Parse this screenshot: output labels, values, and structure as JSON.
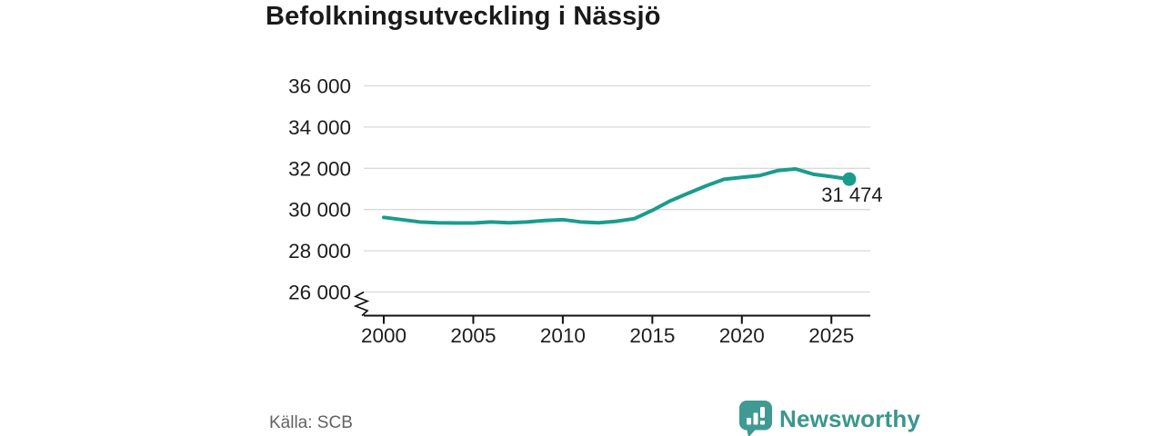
{
  "title": "Befolkningsutveckling i Nässjö",
  "source": "Källa: SCB",
  "branding": {
    "name": "Newsworthy",
    "logo_icon": "speech-bubble-bar-chart-icon",
    "logo_color": "#3f9a93"
  },
  "chart_data": {
    "type": "line",
    "title": "Befolkningsutveckling i Nässjö",
    "xlabel": "",
    "ylabel": "",
    "x": [
      2000,
      2001,
      2002,
      2003,
      2004,
      2005,
      2006,
      2007,
      2008,
      2009,
      2010,
      2011,
      2012,
      2013,
      2014,
      2015,
      2016,
      2017,
      2018,
      2019,
      2020,
      2021,
      2022,
      2023,
      2024,
      2025,
      2026
    ],
    "values": [
      29620,
      29510,
      29400,
      29360,
      29350,
      29350,
      29400,
      29360,
      29400,
      29470,
      29510,
      29400,
      29360,
      29430,
      29560,
      29960,
      30420,
      30790,
      31150,
      31470,
      31560,
      31650,
      31890,
      31970,
      31710,
      31600,
      31474
    ],
    "xticks": [
      2000,
      2005,
      2010,
      2015,
      2020,
      2025
    ],
    "yticks": [
      {
        "value": 26000,
        "label": "26 000"
      },
      {
        "value": 28000,
        "label": "28 000"
      },
      {
        "value": 30000,
        "label": "30 000"
      },
      {
        "value": 32000,
        "label": "32 000"
      },
      {
        "value": 34000,
        "label": "34 000"
      },
      {
        "value": 36000,
        "label": "36 000"
      }
    ],
    "ylim": [
      26000,
      36000
    ],
    "xlim": [
      2000,
      2027
    ],
    "grid": true,
    "axis_break": true,
    "legend": "none",
    "line_color": "#1a9c8d",
    "grid_color": "#d9d9d9",
    "axis_color": "#111111",
    "last_point_label": "31 474",
    "last_point_value": 31474
  }
}
